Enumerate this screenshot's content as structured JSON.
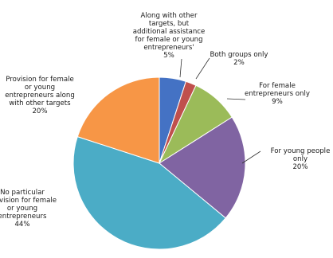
{
  "chart_data": {
    "type": "pie",
    "title": "",
    "start_angle_deg": 0,
    "direction": "clockwise",
    "slices": [
      {
        "label": "Along with other targets, but additional assistance for female or young entrepreneurs",
        "value_label": "5%",
        "value": 5,
        "color": "#4472c4"
      },
      {
        "label": "Both groups only",
        "value_label": "2%",
        "value": 2,
        "color": "#c0504d"
      },
      {
        "label": "For female entrepreneurs only",
        "value_label": "9%",
        "value": 9,
        "color": "#9bbb59"
      },
      {
        "label": "For young people only",
        "value_label": "20%",
        "value": 20,
        "color": "#8064a2"
      },
      {
        "label": "No particular provision for female or young entrepreneurs",
        "value_label": "44%",
        "value": 44,
        "color": "#4bacc6"
      },
      {
        "label": "Provision for female or young entrepreneurs along with other targets",
        "value_label": "20%",
        "value": 20,
        "color": "#f79646"
      }
    ]
  }
}
